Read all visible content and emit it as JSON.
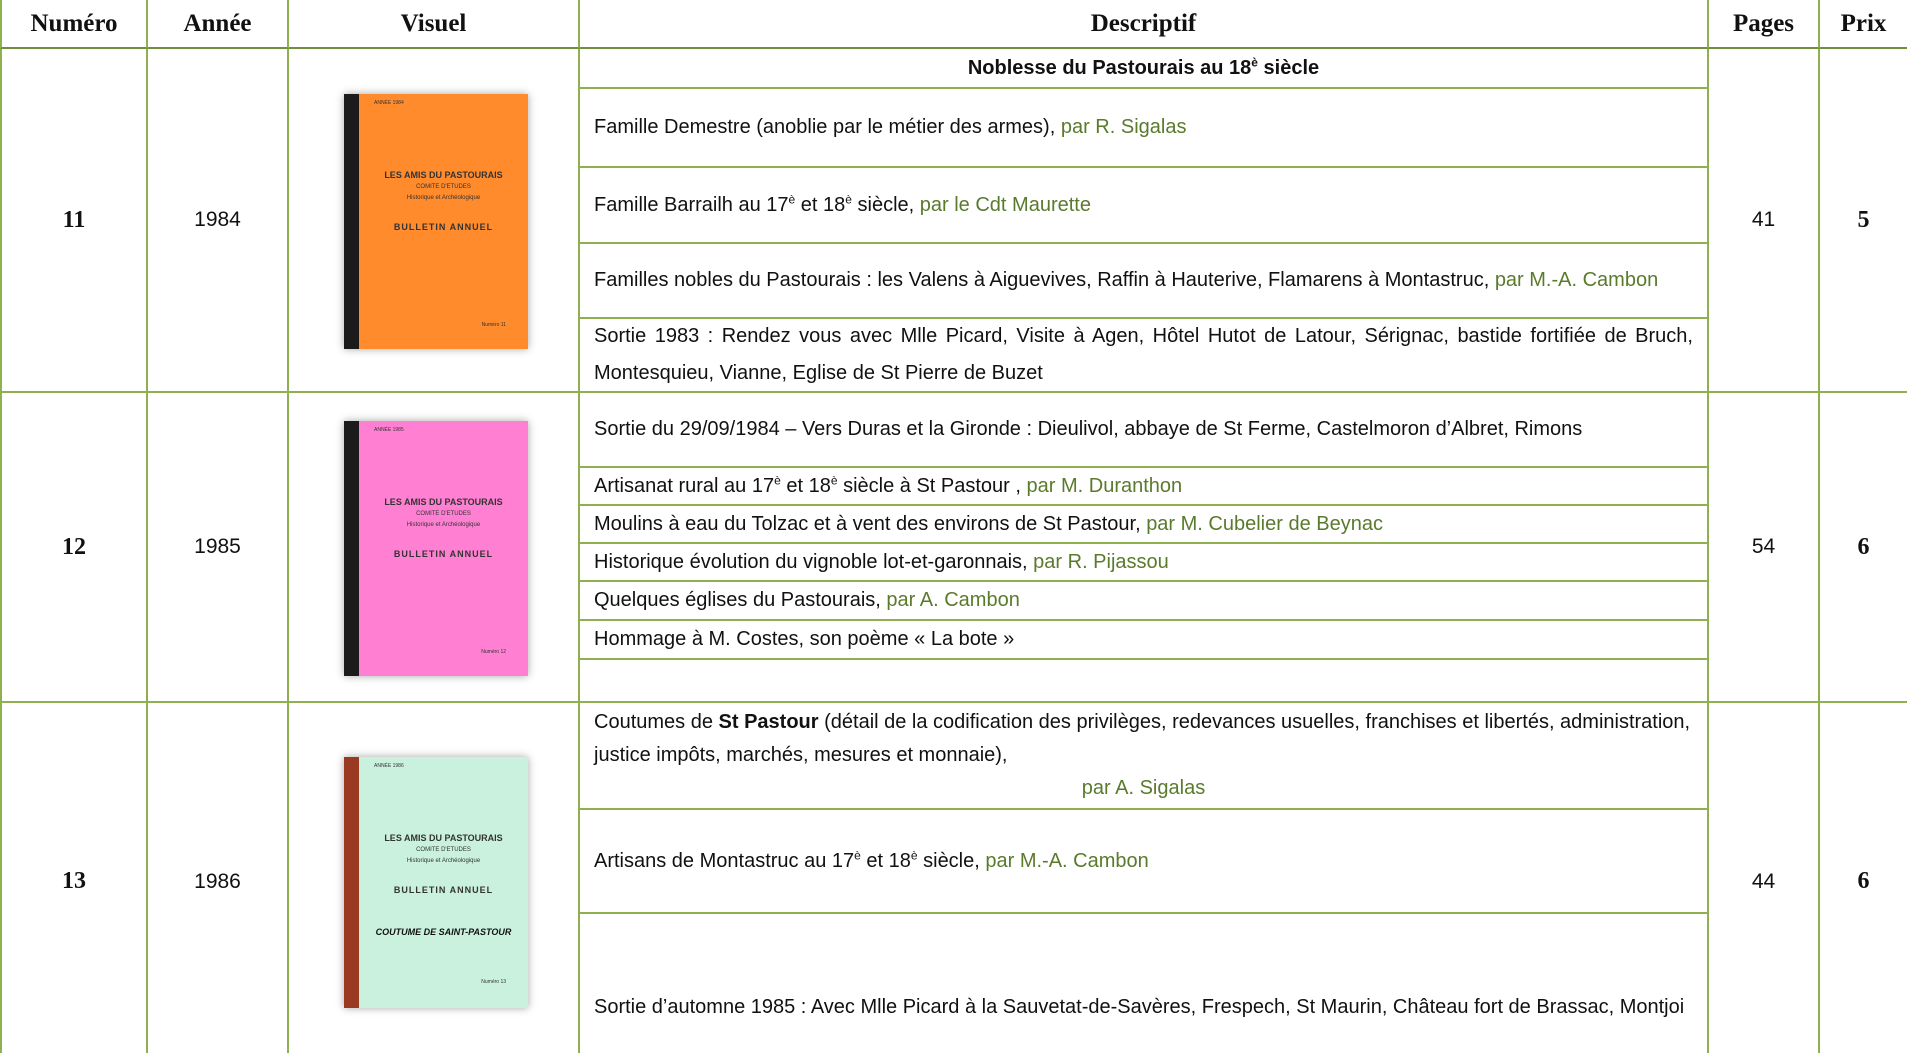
{
  "table": {
    "header": [
      "Numéro",
      "Année",
      "Visuel",
      "Descriptif",
      "Pages",
      "Prix"
    ],
    "rows": [
      {
        "numero": 11,
        "annee": 1984,
        "cover": {
          "color": "#ff8b2c",
          "spine": "#1b1b1b",
          "year": "ANNÉE 1984",
          "society": "LES AMIS DU PASTOURAIS",
          "committee": "COMITE D'ETUDES",
          "subject": "Historique et Archéologique",
          "bulletin": "BULLETIN ANNUEL",
          "number": "Numéro 11"
        },
        "entries": [
          {
            "heading": true,
            "runs": [
              {
                "text": "Noblesse du Pastourais au 18"
              },
              {
                "sup": "è"
              },
              {
                "text": " siècle"
              }
            ]
          },
          {
            "runs": [
              {
                "text": "Famille Demestre (anoblie par le métier des armes), "
              },
              {
                "author": "par R. Sigalas"
              }
            ]
          },
          {
            "runs": [
              {
                "text": "Famille Barrailh au 17"
              },
              {
                "sup": "è"
              },
              {
                "text": " et 18"
              },
              {
                "sup": "è"
              },
              {
                "text": " siècle, "
              },
              {
                "author": "par le Cdt Maurette"
              }
            ]
          },
          {
            "runs": [
              {
                "text": "Familles nobles du Pastourais : les Valens à Aiguevives, Raffin à Hauterive, Flamarens à Montastruc, "
              },
              {
                "author": "par M.-A. Cambon"
              }
            ]
          },
          {
            "runs": [
              {
                "text": "Sortie 1983 : Rendez vous avec Mlle Picard, Visite à Agen, Hôtel Hutot de Latour, Sérignac, bastide fortifiée de Bruch, Montesquieu, Vianne, Eglise de St Pierre de Buzet"
              }
            ]
          }
        ],
        "pages": 41,
        "prix": 5
      },
      {
        "numero": 12,
        "annee": 1985,
        "cover": {
          "color": "#ff80d2",
          "spine": "#1b1b1b",
          "year": "ANNÉE 1985",
          "society": "LES AMIS DU PASTOURAIS",
          "committee": "COMITE D'ETUDES",
          "subject": "Historique et Archéologique",
          "bulletin": "BULLETIN ANNUEL",
          "number": "Numéro 12"
        },
        "entries": [
          {
            "runs": [
              {
                "text": "Sortie du 29/09/1984 – Vers Duras et la Gironde : Dieulivol, abbaye de St Ferme, Castelmoron d’Albret, Rimons"
              }
            ]
          },
          {
            "runs": [
              {
                "text": "Artisanat rural au 17"
              },
              {
                "sup": "è"
              },
              {
                "text": " et 18"
              },
              {
                "sup": "è"
              },
              {
                "text": " siècle à St Pastour , "
              },
              {
                "author": "par M. Duranthon"
              }
            ]
          },
          {
            "runs": [
              {
                "text": "Moulins à eau du Tolzac et à vent des environs de St Pastour, "
              },
              {
                "author": "par M. Cubelier de Beynac"
              }
            ]
          },
          {
            "runs": [
              {
                "text": "Historique évolution du vignoble lot-et-garonnais, "
              },
              {
                "author": "par R. Pijassou"
              }
            ]
          },
          {
            "runs": [
              {
                "text": "Quelques églises du Pastourais, "
              },
              {
                "author": "par A. Cambon"
              }
            ]
          },
          {
            "runs": [
              {
                "text": "Hommage à M. Costes, son poème « La bote »"
              }
            ]
          },
          {
            "runs": []
          }
        ],
        "pages": 54,
        "prix": 6
      },
      {
        "numero": 13,
        "annee": 1986,
        "cover": {
          "color": "#c9f1de",
          "spine": "#9a3a22",
          "year": "ANNÉE 1986",
          "society": "LES AMIS DU PASTOURAIS",
          "committee": "COMITE D'ETUDES",
          "subject": "Historique et Archéologique",
          "bulletin": "BULLETIN ANNUEL",
          "theme": "COUTUME DE SAINT-PASTOUR",
          "number": "Numéro 13"
        },
        "entries": [
          {
            "runs": [
              {
                "text": "Coutumes de "
              },
              {
                "bold": "St Pastour"
              },
              {
                "text": " (détail de la codification des privilèges, redevances usuelles, franchises et libertés, administration, justice impôts, marchés, mesures et monnaie),"
              },
              {
                "author_block": "par A. Sigalas"
              }
            ]
          },
          {
            "runs": [
              {
                "text": "Artisans de Montastruc au 17"
              },
              {
                "sup": "è"
              },
              {
                "text": " et 18"
              },
              {
                "sup": "è"
              },
              {
                "text": " siècle, "
              },
              {
                "author": "par M.-A. Cambon"
              }
            ]
          },
          {
            "runs": [
              {
                "text": "Sortie d’automne 1985 : Avec Mlle Picard à la Sauvetat-de-Savères, Frespech, St Maurin, Château fort de Brassac, Montjoi"
              }
            ]
          }
        ],
        "pages": 44,
        "prix": 6
      }
    ]
  }
}
